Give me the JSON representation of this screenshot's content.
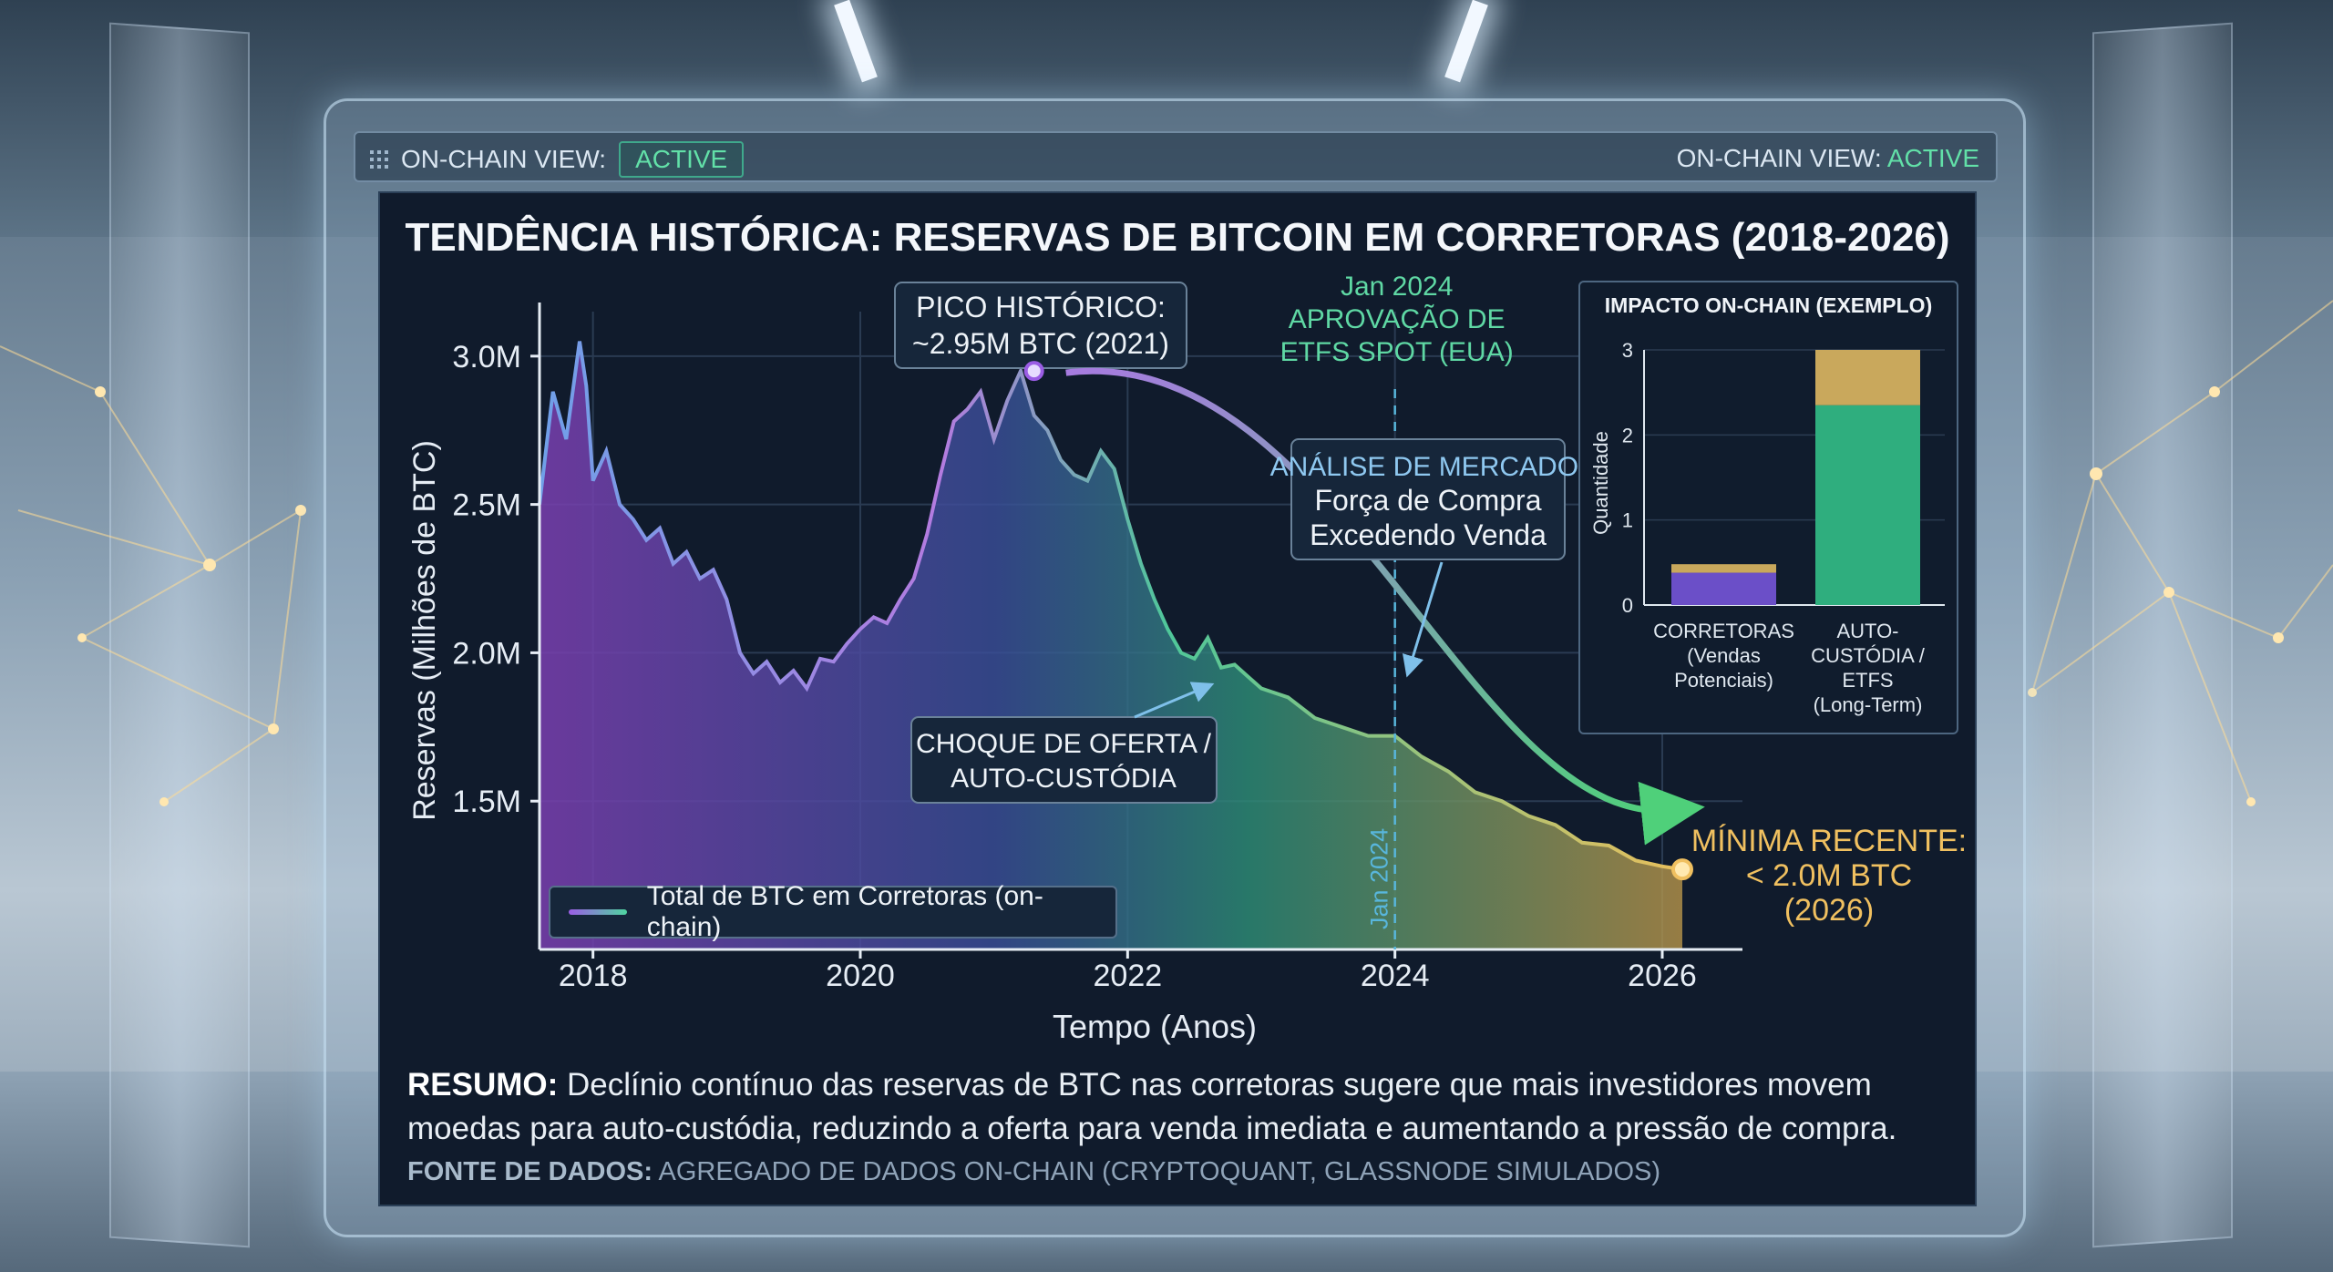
{
  "topbar": {
    "left_label": "ON-CHAIN VIEW:",
    "left_badge": "ACTIVE",
    "right_label": "ON-CHAIN VIEW:",
    "right_status": "ACTIVE",
    "icon": "grid-dots-icon"
  },
  "chart_title": "TENDÊNCIA HISTÓRICA: RESERVAS DE BITCOIN EM CORRETORAS (2018-2026)",
  "chart_data": [
    {
      "type": "area",
      "title": "TENDÊNCIA HISTÓRICA: RESERVAS DE BITCOIN EM CORRETORAS (2018-2026)",
      "xlabel": "Tempo (Anos)",
      "ylabel": "Reservas (Milhões de BTC)",
      "xlim": [
        2017.6,
        2026.6
      ],
      "ylim": [
        1.0,
        3.15
      ],
      "xticks": [
        2018,
        2020,
        2022,
        2024,
        2026
      ],
      "xtick_labels": [
        "2018",
        "2020",
        "2022",
        "2024",
        "2026"
      ],
      "yticks": [
        1.5,
        2.0,
        2.5,
        3.0
      ],
      "ytick_labels": [
        "1.5M",
        "2.0M",
        "2.5M",
        "3.0M"
      ],
      "grid": true,
      "legend_position": "bottom-left",
      "series": [
        {
          "name": "Total de BTC em Corretoras (on-chain)",
          "x": [
            2017.6,
            2017.7,
            2017.8,
            2017.9,
            2017.95,
            2018.0,
            2018.1,
            2018.2,
            2018.3,
            2018.4,
            2018.5,
            2018.6,
            2018.7,
            2018.8,
            2018.9,
            2019.0,
            2019.1,
            2019.2,
            2019.3,
            2019.4,
            2019.5,
            2019.6,
            2019.7,
            2019.8,
            2019.9,
            2020.0,
            2020.1,
            2020.2,
            2020.3,
            2020.4,
            2020.5,
            2020.6,
            2020.7,
            2020.8,
            2020.9,
            2021.0,
            2021.1,
            2021.2,
            2021.3,
            2021.4,
            2021.5,
            2021.6,
            2021.7,
            2021.8,
            2021.9,
            2022.0,
            2022.1,
            2022.2,
            2022.3,
            2022.4,
            2022.5,
            2022.6,
            2022.7,
            2022.8,
            2022.9,
            2023.0,
            2023.2,
            2023.4,
            2023.6,
            2023.8,
            2024.0,
            2024.2,
            2024.4,
            2024.6,
            2024.8,
            2025.0,
            2025.2,
            2025.4,
            2025.6,
            2025.8,
            2026.0,
            2026.15
          ],
          "values": [
            2.5,
            2.88,
            2.72,
            3.05,
            2.9,
            2.58,
            2.68,
            2.5,
            2.45,
            2.38,
            2.42,
            2.3,
            2.34,
            2.25,
            2.28,
            2.18,
            2.0,
            1.93,
            1.97,
            1.9,
            1.94,
            1.88,
            1.98,
            1.97,
            2.03,
            2.08,
            2.12,
            2.1,
            2.18,
            2.25,
            2.4,
            2.6,
            2.78,
            2.82,
            2.88,
            2.72,
            2.85,
            2.95,
            2.8,
            2.75,
            2.65,
            2.6,
            2.58,
            2.68,
            2.62,
            2.45,
            2.3,
            2.18,
            2.08,
            2.0,
            1.98,
            2.05,
            1.95,
            1.96,
            1.92,
            1.88,
            1.85,
            1.78,
            1.75,
            1.72,
            1.72,
            1.65,
            1.6,
            1.53,
            1.5,
            1.45,
            1.42,
            1.36,
            1.35,
            1.3,
            1.28,
            1.27
          ]
        }
      ],
      "annotations": [
        {
          "text": "PICO HISTÓRICO:\n~2.95M BTC (2021)",
          "x": 2021.3,
          "y": 2.95
        },
        {
          "text": "Jan 2024\nAPROVAÇÃO DE\nETFS SPOT (EUA)",
          "x": 2024.0
        },
        {
          "text": "ANÁLISE DE MERCADO:\nForça de Compra\nExcedendo Venda"
        },
        {
          "text": "CHOQUE DE OFERTA /\nAUTO-CUSTÓDIA",
          "x": 2022.6,
          "y": 1.95
        },
        {
          "text": "MÍNIMA RECENTE:\n< 2.0M BTC\n(2026)",
          "x": 2026.15,
          "y": 1.27
        },
        {
          "text": "Jan 2024",
          "x": 2024.0
        }
      ]
    },
    {
      "type": "bar",
      "title": "IMPACTO ON-CHAIN (EXEMPLO)",
      "ylabel": "Quantidade",
      "ylim": [
        0,
        3
      ],
      "yticks": [
        0,
        1,
        2,
        3
      ],
      "categories": [
        "CORRETORAS (Vendas Potenciais)",
        "AUTO-CUSTÓDIA / ETFS (Long-Term)"
      ],
      "series": [
        {
          "values": [
            0.38,
            2.35
          ],
          "color": "#2fae7e"
        },
        {
          "values": [
            0.1,
            0.65
          ],
          "color": "#c9a85c"
        }
      ],
      "bar_bottom_colors": [
        "#6b4fc8",
        "#2fae7e"
      ]
    }
  ],
  "labels": {
    "peak_title": "PICO HISTÓRICO:",
    "peak_value": "~2.95M BTC (2021)",
    "etf_line1": "Jan 2024",
    "etf_line2": "APROVAÇÃO DE",
    "etf_line3": "ETFS SPOT (EUA)",
    "market_title": "ANÁLISE DE MERCADO:",
    "market_line1": "Força de Compra",
    "market_line2": "Excedendo Venda",
    "shock_line1": "CHOQUE DE OFERTA /",
    "shock_line2": "AUTO-CUSTÓDIA",
    "min_line1": "MÍNIMA RECENTE:",
    "min_line2": "< 2.0M BTC",
    "min_line3": "(2026)",
    "vline_label": "Jan 2024",
    "ylabel": "Reservas (Milhões de BTC)",
    "xlabel": "Tempo (Anos)",
    "legend": "Total de BTC em Corretoras (on-chain)"
  },
  "inset": {
    "title": "IMPACTO ON-CHAIN (EXEMPLO)",
    "ylabel": "Quantidade",
    "yticks": [
      "0",
      "1",
      "2",
      "3"
    ],
    "cat1": [
      "CORRETORAS",
      "(Vendas",
      "Potenciais)"
    ],
    "cat2": [
      "AUTO-",
      "CUSTÓDIA /",
      "ETFS",
      "(Long-Term)"
    ]
  },
  "summary": {
    "label": "RESUMO:",
    "text": " Declínio contínuo das reservas de BTC nas corretoras sugere que mais investidores movem moedas para auto-custódia, reduzindo a oferta para venda imediata e aumentando a pressão de compra."
  },
  "source": {
    "label": "FONTE DE DADOS:",
    "text": " AGREGADO DE DADOS ON-CHAIN (CRYPTOQUANT, GLASSNODE SIMULADOS)"
  },
  "colors": {
    "panel_bg": "#101b2c",
    "accent_green": "#62e0a8",
    "accent_gold": "#f0c060",
    "purple": "#9b5de5",
    "etf_text": "#5fd8a4",
    "market_title": "#8fc8f0"
  }
}
